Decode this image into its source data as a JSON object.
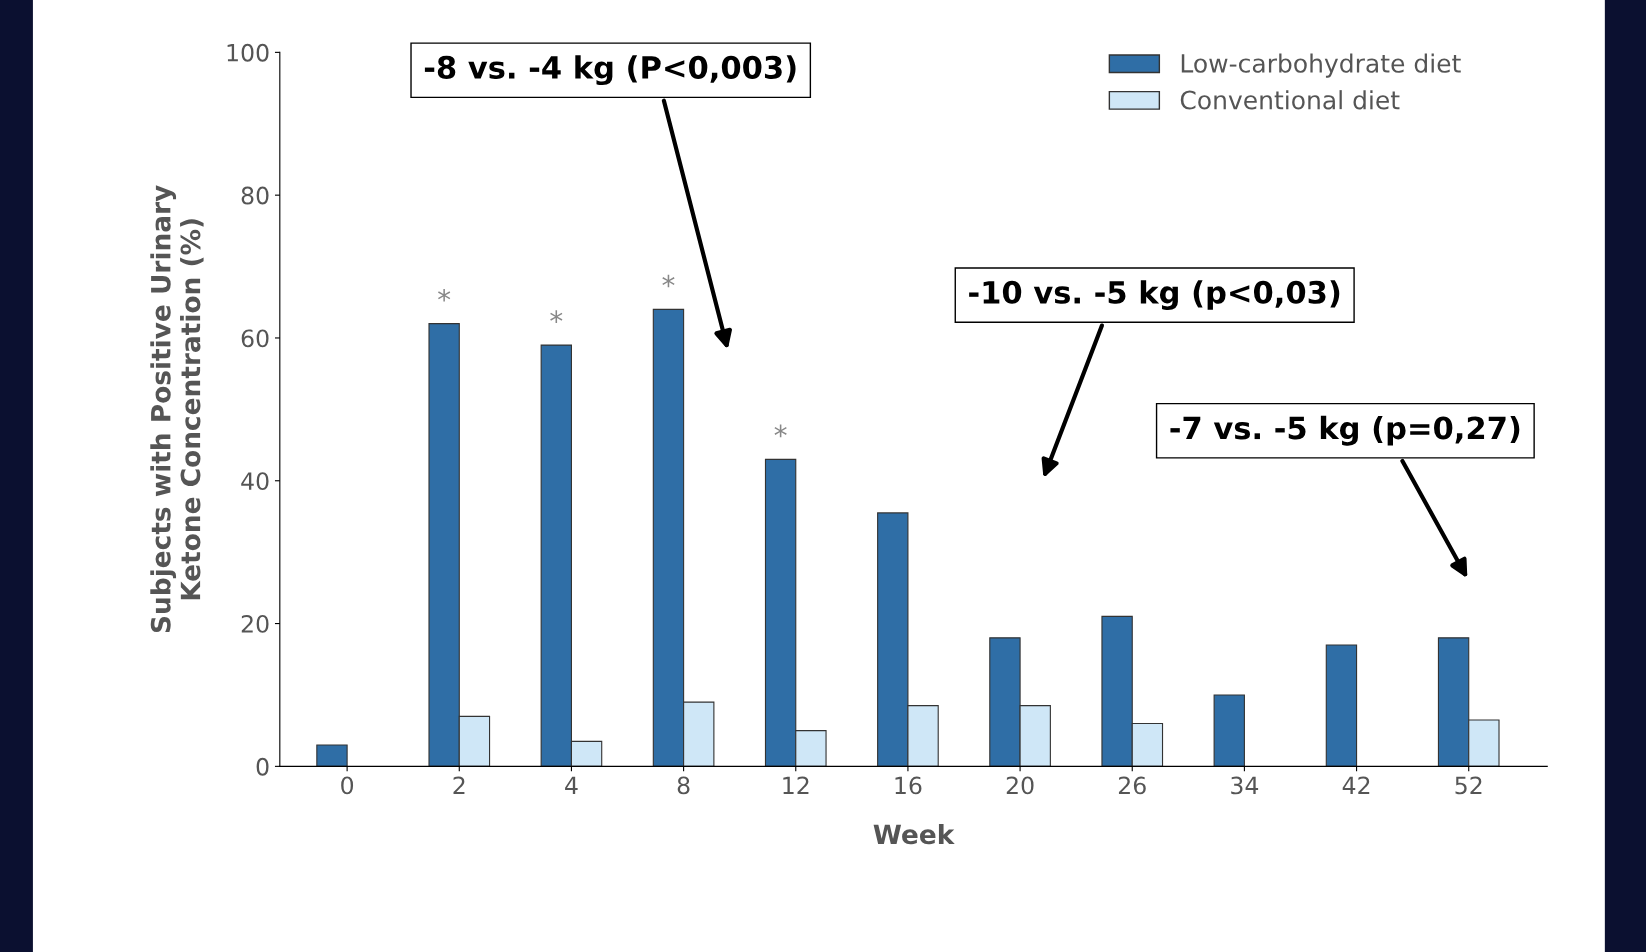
{
  "chart_data": {
    "type": "bar",
    "xlabel": "Week",
    "ylabel": "Subjects with Positive Urinary\nKetone Concentration (%)",
    "categories": [
      "0",
      "2",
      "4",
      "8",
      "12",
      "16",
      "20",
      "26",
      "34",
      "42",
      "52"
    ],
    "series": [
      {
        "name": "Low-carbohydrate diet",
        "color": "#2f6ea6",
        "values": [
          3,
          62,
          59,
          64,
          43,
          35.5,
          18,
          21,
          10,
          17,
          18
        ]
      },
      {
        "name": "Conventional diet",
        "color": "#cfe7f7",
        "values": [
          null,
          7,
          3.5,
          9,
          5,
          8.5,
          8.5,
          6,
          null,
          null,
          6.5
        ]
      }
    ],
    "ylim": [
      0,
      100
    ],
    "yticks": [
      0,
      20,
      40,
      60,
      80,
      100
    ],
    "grid": false,
    "legend": "top right",
    "annotations": [
      {
        "text": "*",
        "x": "2",
        "y": 62
      },
      {
        "text": "*",
        "x": "4",
        "y": 59
      },
      {
        "text": "*",
        "x": "8",
        "y": 64
      },
      {
        "text": "*",
        "x": "12",
        "y": 43
      },
      "-8 vs. -4 kg (P<0,003)",
      "-10 vs. -5 kg (p<0,03)",
      "-7 vs. -5 kg (p=0,27)"
    ]
  }
}
